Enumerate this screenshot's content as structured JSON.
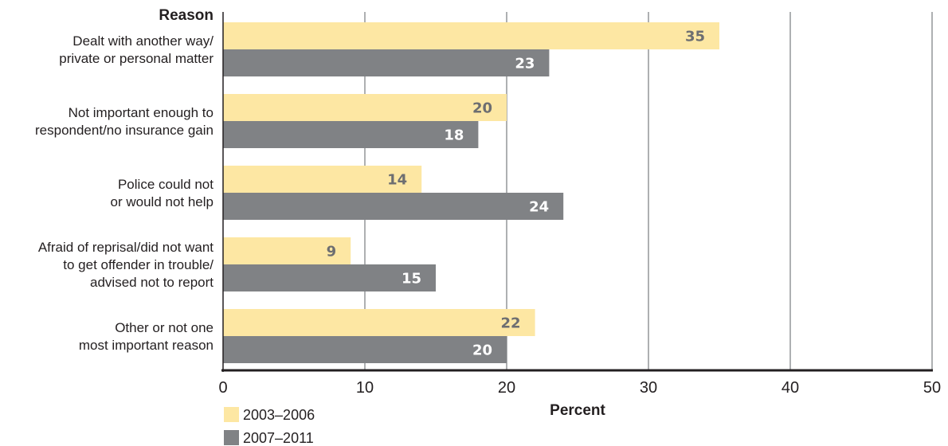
{
  "chart_data": {
    "type": "bar",
    "orientation": "horizontal",
    "categories": [
      "Dealt with another way/\nprivate or personal matter",
      "Not important enough to\nrespondent/no insurance gain",
      "Police could not\nor would not help",
      "Afraid of reprisal/did not want\nto get offender in trouble/\nadvised not to report",
      "Other or not one\nmost important reason"
    ],
    "series": [
      {
        "name": "2003–2006",
        "values": [
          35,
          20,
          14,
          9,
          22
        ],
        "color": "#fde7a3",
        "label_color": "#6d6e71"
      },
      {
        "name": "2007–2011",
        "values": [
          23,
          18,
          24,
          15,
          20
        ],
        "color": "#808285",
        "label_color": "#ffffff"
      }
    ],
    "title": "",
    "xlabel": "Percent",
    "ylabel": "Reason",
    "xlim": [
      0,
      50
    ],
    "xticks": [
      0,
      10,
      20,
      30,
      40,
      50
    ],
    "grid": true,
    "legend_position": "bottom-left"
  }
}
